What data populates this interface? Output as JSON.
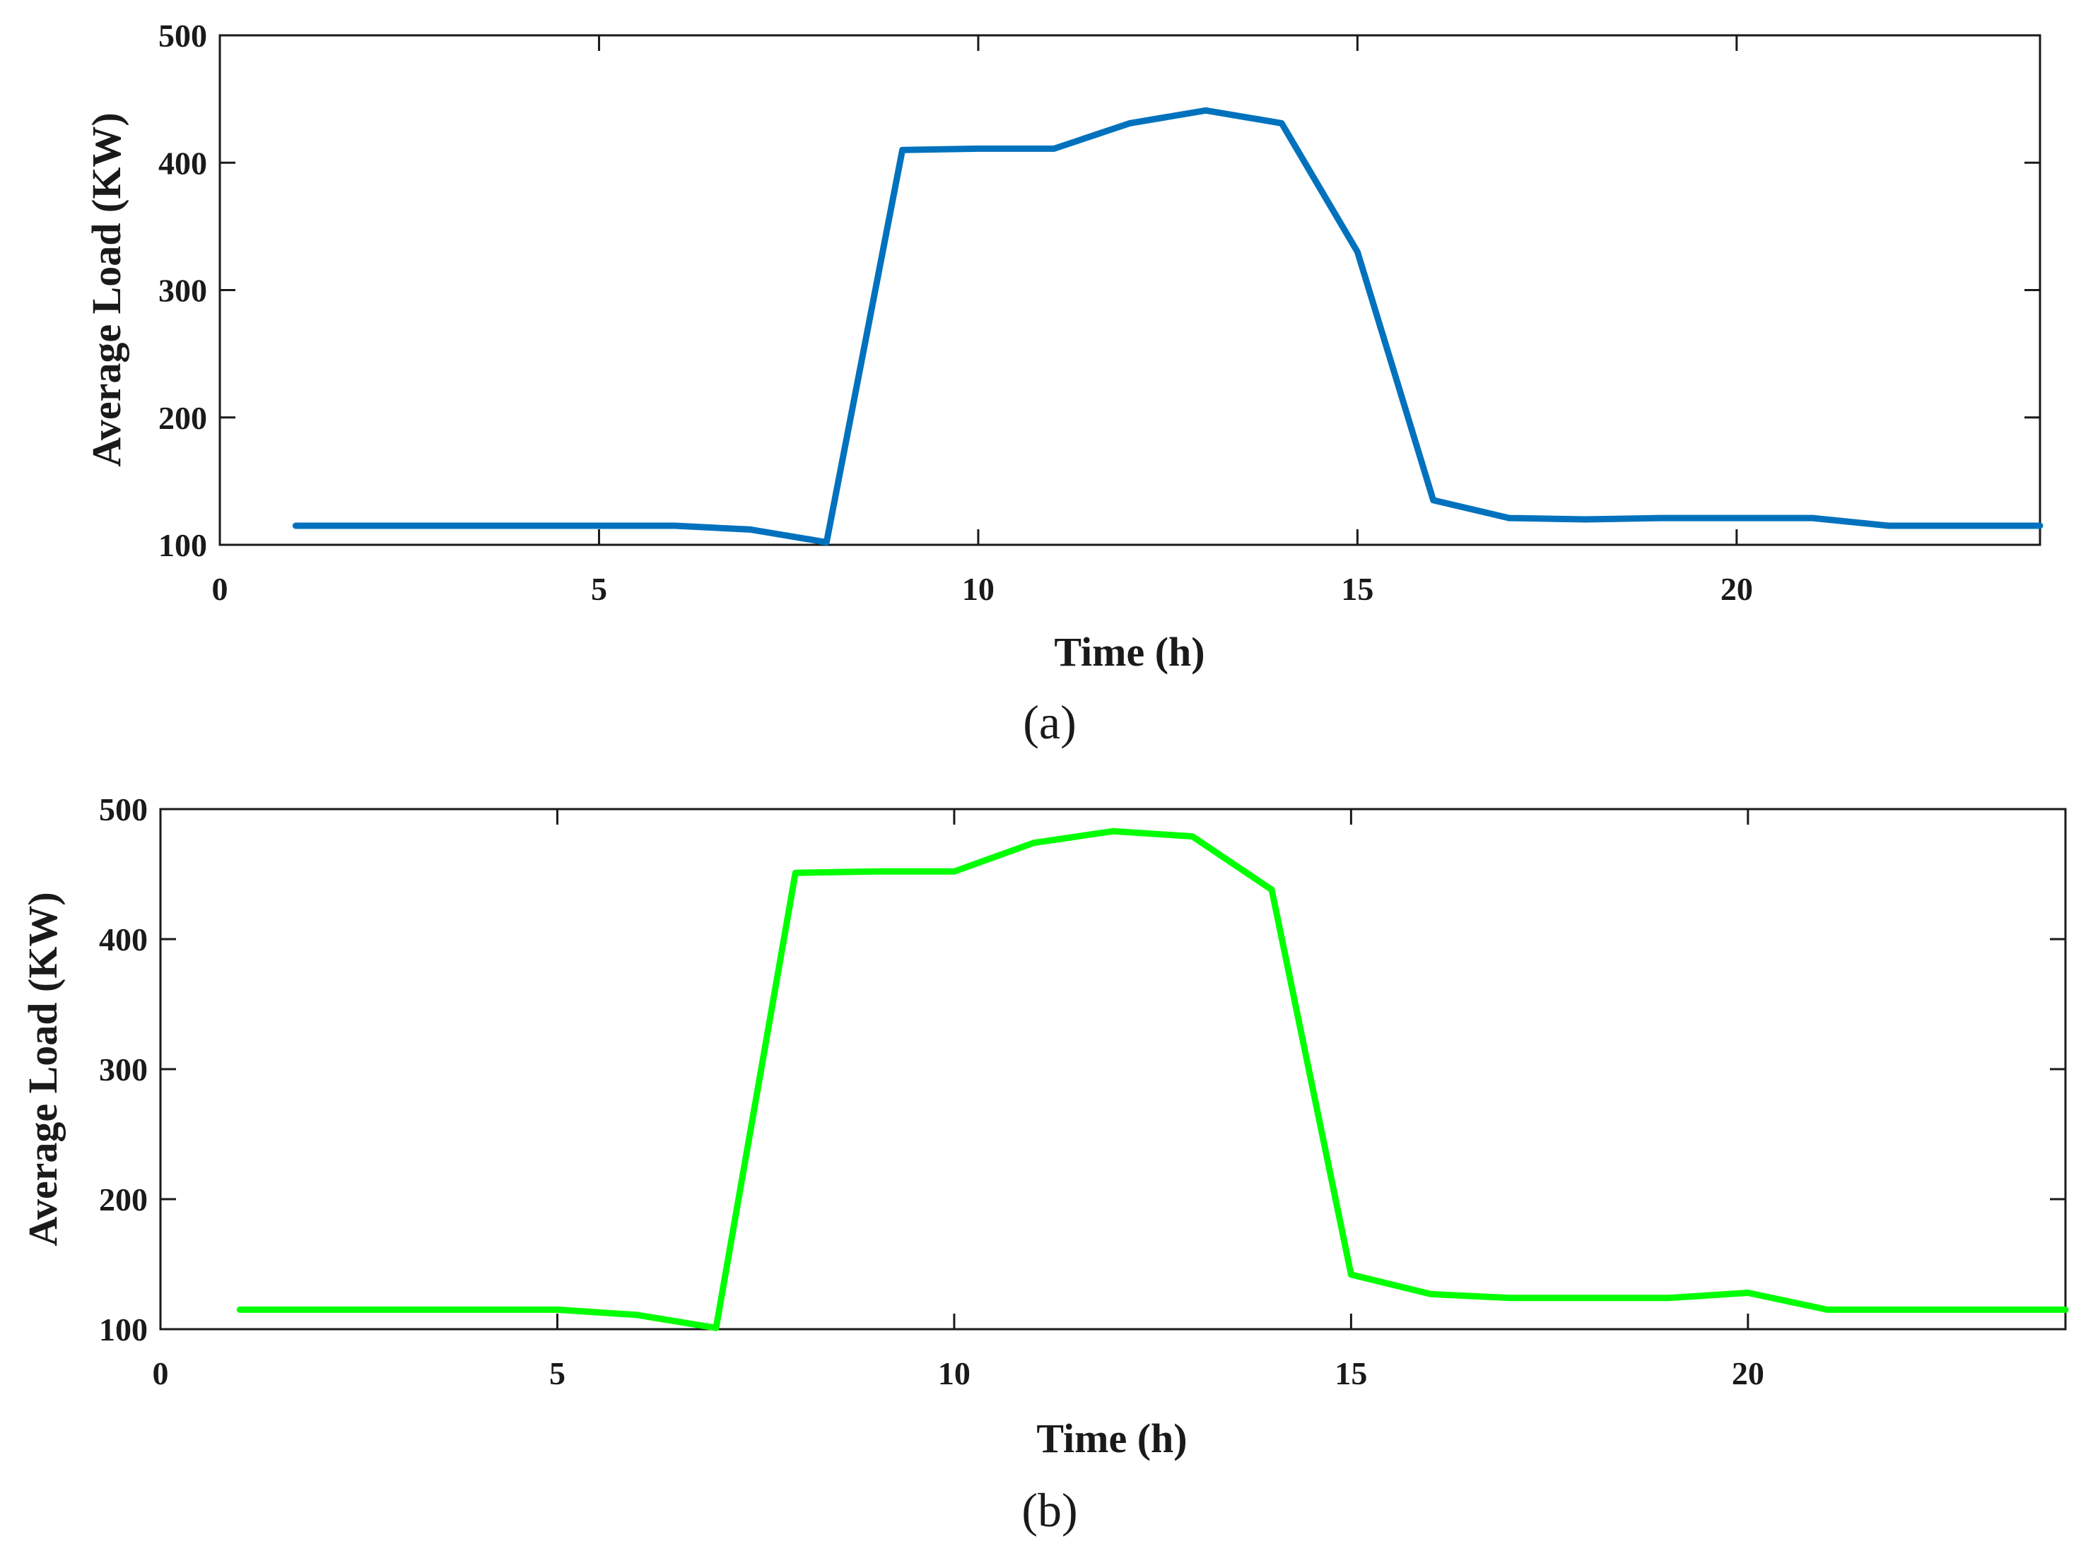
{
  "chart_data": [
    {
      "type": "line",
      "xlabel": "Time (h)",
      "ylabel": "Average Load (KW)",
      "caption": "(a)",
      "xlim": [
        0,
        24
      ],
      "ylim": [
        100,
        500
      ],
      "xticks": [
        "0",
        "5",
        "10",
        "15",
        "20"
      ],
      "yticks": [
        "100",
        "200",
        "300",
        "400",
        "500"
      ],
      "grid": false,
      "series": [
        {
          "color": "#0072bd",
          "x": [
            1,
            2,
            3,
            4,
            5,
            6,
            7,
            8,
            9,
            10,
            11,
            12,
            13,
            14,
            15,
            16,
            17,
            18,
            19,
            20,
            21,
            22,
            23,
            24
          ],
          "y": [
            115,
            115,
            115,
            115,
            115,
            115,
            112,
            102,
            410,
            411,
            411,
            431,
            441,
            431,
            330,
            135,
            121,
            120,
            121,
            121,
            121,
            115,
            115,
            115
          ]
        }
      ]
    },
    {
      "type": "line",
      "xlabel": "Time (h)",
      "ylabel": "Average Load (KW)",
      "caption": "(b)",
      "xlim": [
        0,
        24
      ],
      "ylim": [
        100,
        500
      ],
      "xticks": [
        "0",
        "5",
        "10",
        "15",
        "20"
      ],
      "yticks": [
        "100",
        "200",
        "300",
        "400",
        "500"
      ],
      "grid": false,
      "series": [
        {
          "color": "#00ff00",
          "x": [
            1,
            2,
            3,
            4,
            5,
            6,
            7,
            8,
            9,
            10,
            11,
            12,
            13,
            14,
            15,
            16,
            17,
            18,
            19,
            20,
            21,
            22,
            23,
            24
          ],
          "y": [
            115,
            115,
            115,
            115,
            115,
            111,
            101,
            451,
            452,
            452,
            474,
            483,
            479,
            438,
            142,
            127,
            124,
            124,
            124,
            128,
            115,
            115,
            115,
            115
          ]
        }
      ]
    }
  ]
}
